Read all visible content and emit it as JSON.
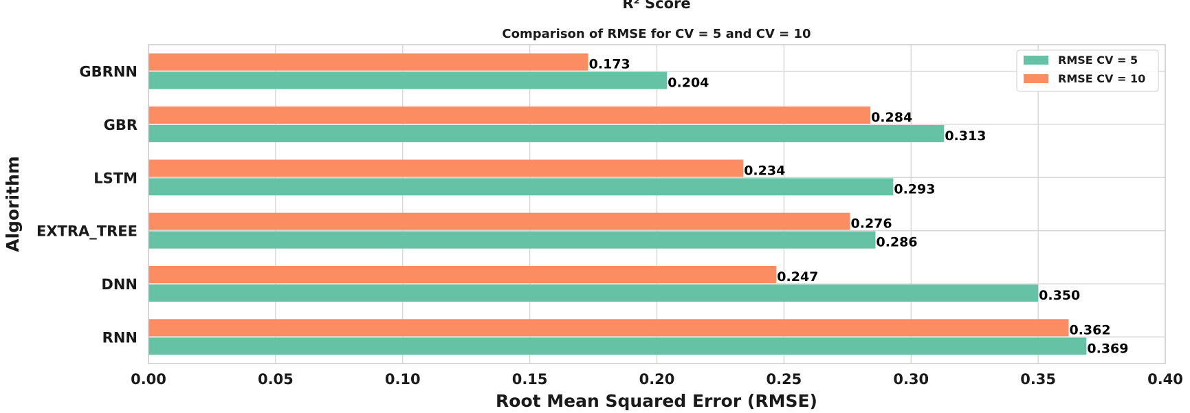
{
  "chart_data": {
    "type": "bar",
    "orientation": "horizontal",
    "suptitle": "R² Score",
    "title": "Comparison of RMSE for CV = 5 and CV = 10",
    "xlabel": "Root Mean Squared Error (RMSE)",
    "ylabel": "Algorithm",
    "xlim": [
      0,
      0.4
    ],
    "xticks": [
      "0.00",
      "0.05",
      "0.10",
      "0.15",
      "0.20",
      "0.25",
      "0.30",
      "0.35",
      "0.40"
    ],
    "grid": true,
    "legend_position": "top-right",
    "categories": [
      "RNN",
      "DNN",
      "EXTRA_TREE",
      "LSTM",
      "GBR",
      "GBRNN"
    ],
    "series": [
      {
        "name": "RMSE CV = 5",
        "color": "#66c2a5",
        "values": [
          0.369,
          0.35,
          0.286,
          0.293,
          0.313,
          0.204
        ],
        "labels": [
          "0.369",
          "0.350",
          "0.286",
          "0.293",
          "0.313",
          "0.204"
        ]
      },
      {
        "name": "RMSE CV = 10",
        "color": "#fc8d62",
        "values": [
          0.362,
          0.247,
          0.276,
          0.234,
          0.284,
          0.173
        ],
        "labels": [
          "0.362",
          "0.247",
          "0.276",
          "0.234",
          "0.284",
          "0.173"
        ]
      }
    ]
  }
}
